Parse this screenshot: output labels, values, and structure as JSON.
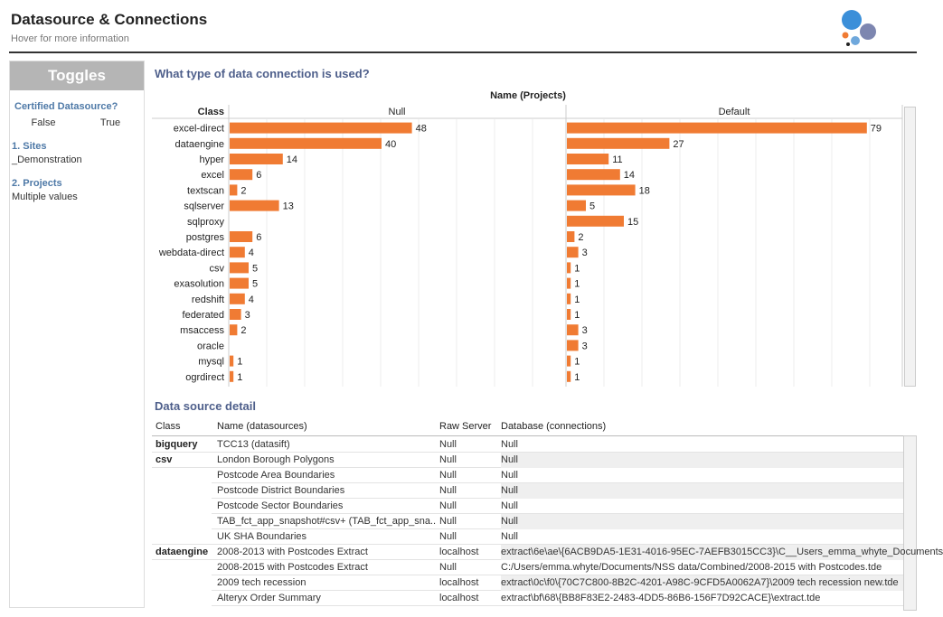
{
  "header": {
    "title": "Datasource & Connections",
    "subtitle": "Hover for more information"
  },
  "sidebar": {
    "toggles_label": "Toggles",
    "certified_label": "Certified Datasource?",
    "certified_options": [
      "False",
      "True"
    ],
    "sites_label": "1. Sites",
    "sites_value": "_Demonstration",
    "projects_label": "2. Projects",
    "projects_value": "Multiple values"
  },
  "colors": {
    "bar": "#f07b33",
    "accent": "#4e79a7",
    "title": "#4e5f8b"
  },
  "chart": {
    "title": "What type of data connection is used?",
    "header": "Name (Projects)",
    "row_header": "Class",
    "columns": [
      "Null",
      "Default"
    ]
  },
  "chart_data": {
    "type": "bar",
    "categories": [
      "excel-direct",
      "dataengine",
      "hyper",
      "excel",
      "textscan",
      "sqlserver",
      "sqlproxy",
      "postgres",
      "webdata-direct",
      "csv",
      "exasolution",
      "redshift",
      "federated",
      "msaccess",
      "oracle",
      "mysql",
      "ogrdirect"
    ],
    "series": [
      {
        "name": "Null",
        "values": [
          48,
          40,
          14,
          6,
          2,
          13,
          null,
          6,
          4,
          5,
          5,
          4,
          3,
          2,
          null,
          1,
          1
        ]
      },
      {
        "name": "Default",
        "values": [
          79,
          27,
          11,
          14,
          18,
          5,
          15,
          2,
          3,
          1,
          1,
          1,
          1,
          3,
          3,
          1,
          1
        ]
      }
    ],
    "title": "What type of data connection is used?",
    "xlabel": "Name (Projects)",
    "ylabel": "Class",
    "xlim": [
      0,
      80
    ]
  },
  "detail": {
    "title": "Data source detail",
    "headers": [
      "Class",
      "Name (datasources)",
      "Raw Server",
      "Database (connections)"
    ],
    "rows": [
      {
        "class": "bigquery",
        "name": "TCC13 (datasift)",
        "server": "Null",
        "database": "Null"
      },
      {
        "class": "csv",
        "name": "London Borough Polygons",
        "server": "Null",
        "database": "Null"
      },
      {
        "class": "",
        "name": "Postcode Area Boundaries",
        "server": "Null",
        "database": "Null"
      },
      {
        "class": "",
        "name": "Postcode District Boundaries",
        "server": "Null",
        "database": "Null"
      },
      {
        "class": "",
        "name": "Postcode Sector Boundaries",
        "server": "Null",
        "database": "Null"
      },
      {
        "class": "",
        "name": "TAB_fct_app_snapshot#csv+ (TAB_fct_app_sna..",
        "server": "Null",
        "database": "Null"
      },
      {
        "class": "",
        "name": "UK SHA Boundaries",
        "server": "Null",
        "database": "Null"
      },
      {
        "class": "dataengine",
        "name": "2008-2013 with Postcodes Extract",
        "server": "localhost",
        "database": "extract\\6e\\ae\\{6ACB9DA5-1E31-4016-95EC-7AEFB3015CC3}\\C__Users_emma_whyte_Documents"
      },
      {
        "class": "",
        "name": "2008-2015 with Postcodes Extract",
        "server": "Null",
        "database": "C:/Users/emma.whyte/Documents/NSS data/Combined/2008-2015 with Postcodes.tde"
      },
      {
        "class": "",
        "name": "2009 tech recession",
        "server": "localhost",
        "database": "extract\\0c\\f0\\{70C7C800-8B2C-4201-A98C-9CFD5A0062A7}\\2009 tech recession new.tde"
      },
      {
        "class": "",
        "name": "Alteryx Order Summary",
        "server": "localhost",
        "database": "extract\\bf\\68\\{BB8F83E2-2483-4DD5-86B6-156F7D92CACE}\\extract.tde"
      }
    ]
  }
}
